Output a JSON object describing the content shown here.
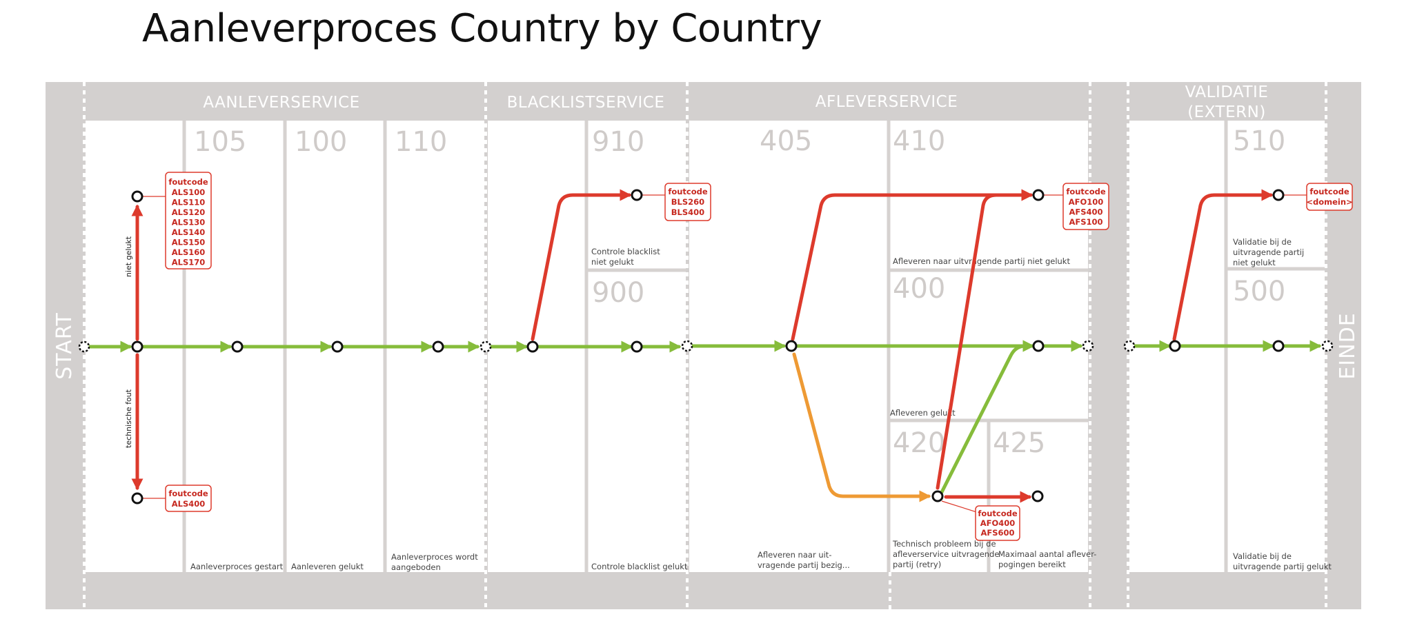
{
  "title": "Aanleverproces Country by Country",
  "start_label": "START",
  "end_label": "EINDE",
  "services": {
    "aanleverservice": "AANLEVERSERVICE",
    "blacklistservice": "BLACKLISTSERVICE",
    "afleverservice": "AFLEVERSERVICE",
    "validatie_line1": "VALIDATIE",
    "validatie_line2": "(EXTERN)"
  },
  "state_codes": {
    "s105": "105",
    "s100": "100",
    "s110": "110",
    "s910": "910",
    "s900": "900",
    "s405": "405",
    "s410": "410",
    "s400": "400",
    "s420": "420",
    "s425": "425",
    "s510": "510",
    "s500": "500"
  },
  "descriptions": {
    "d105": "Aanleverproces gestart",
    "d100": "Aanleveren gelukt",
    "d110_1": "Aanleverproces wordt",
    "d110_2": "aangeboden",
    "d910_1": "Controle blacklist",
    "d910_2": "niet gelukt",
    "d900": "Controle blacklist gelukt",
    "d405_1": "Afleveren naar uit-",
    "d405_2": "vragende partij bezig...",
    "d410": "Afleveren naar uitvragende partij niet gelukt",
    "d400": "Afleveren gelukt",
    "d420_1": "Technisch probleem bij de",
    "d420_2": "afleverservice uitvragende",
    "d420_3": "partij (retry)",
    "d425_1": "Maximaal aantal aflever-",
    "d425_2": "pogingen bereikt",
    "d510_1": "Validatie bij de",
    "d510_2": "uitvragende partij",
    "d510_3": "niet gelukt",
    "d500_1": "Validatie bij de",
    "d500_2": "uitvragende partij gelukt"
  },
  "edge_labels": {
    "niet_gelukt": "niet gelukt",
    "technische_fout": "technische fout"
  },
  "error_boxes": {
    "als_title": "foutcode",
    "als_codes": [
      "ALS100",
      "ALS110",
      "ALS120",
      "ALS130",
      "ALS140",
      "ALS150",
      "ALS160",
      "ALS170"
    ],
    "als400_title": "foutcode",
    "als400_code": "ALS400",
    "bls_title": "foutcode",
    "bls_codes": [
      "BLS260",
      "BLS400"
    ],
    "afo_title": "foutcode",
    "afo_codes": [
      "AFO100",
      "AFS400",
      "AFS100"
    ],
    "afo400_title": "foutcode",
    "afo400_codes": [
      "AFO400",
      "AFS600"
    ],
    "dom_title": "foutcode",
    "dom_code": "<domein>"
  },
  "colors": {
    "frame_gray": "#d3d0cf",
    "divider_gray": "#d6d2d0",
    "success_green": "#86bc3b",
    "error_red": "#dd3a2c",
    "retry_orange": "#ee9a34",
    "state_code_gray": "#cfcbc9"
  }
}
